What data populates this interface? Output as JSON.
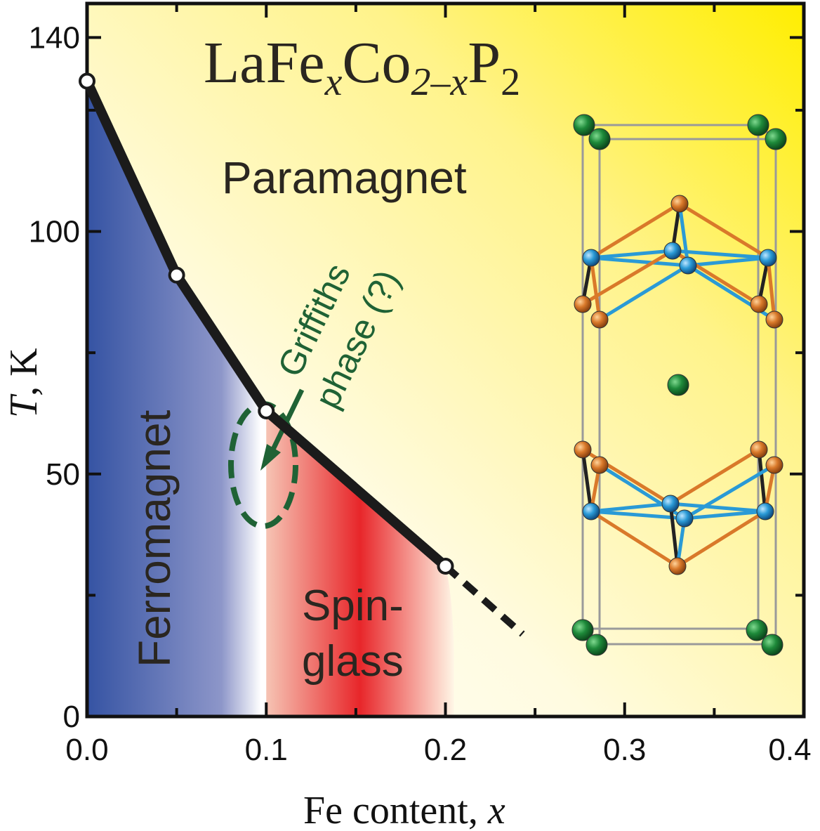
{
  "chart_data": {
    "type": "line",
    "title": {
      "base": "LaFe",
      "sub1": "x",
      "mid": "Co",
      "sub2": "2–x",
      "end": "P",
      "sub3": "2"
    },
    "xlabel": {
      "text": "Fe content, ",
      "var": "x"
    },
    "ylabel": {
      "var": "T",
      "text": ", K"
    },
    "xlim": [
      0.0,
      0.4
    ],
    "ylim": [
      0,
      147
    ],
    "x_ticks": [
      0.0,
      0.1,
      0.2,
      0.3,
      0.4
    ],
    "x_tick_labels": [
      "0.0",
      "0.1",
      "0.2",
      "0.3",
      "0.4"
    ],
    "y_ticks": [
      0,
      50,
      100,
      140
    ],
    "y_tick_labels": [
      "0",
      "50",
      "100",
      "140"
    ],
    "series": [
      {
        "points": [
          {
            "x": 0.0,
            "y": 131
          },
          {
            "x": 0.05,
            "y": 91
          },
          {
            "x": 0.1,
            "y": 63
          },
          {
            "x": 0.2,
            "y": 31
          }
        ],
        "extrapolation": [
          {
            "x": 0.2,
            "y": 31
          },
          {
            "x": 0.243,
            "y": 17
          }
        ]
      }
    ],
    "regions": {
      "paramagnet": "Paramagnet",
      "ferromagnet": "Ferromagnet",
      "spin_glass_line1": "Spin-",
      "spin_glass_line2": "glass",
      "griffiths_line1": "Griffiths",
      "griffiths_line2": "phase (?)"
    },
    "colors": {
      "ferromagnet": "#3a56a6",
      "spin_glass": "#e8282b",
      "paramagnet": "#fff200",
      "griffiths": "#1f6235",
      "line": "#1b1b1b"
    }
  },
  "inset": {
    "atom_colors": {
      "la": "#1e8a3a",
      "p": "#d9792a",
      "transition_metal": "#2a9ad6"
    }
  }
}
